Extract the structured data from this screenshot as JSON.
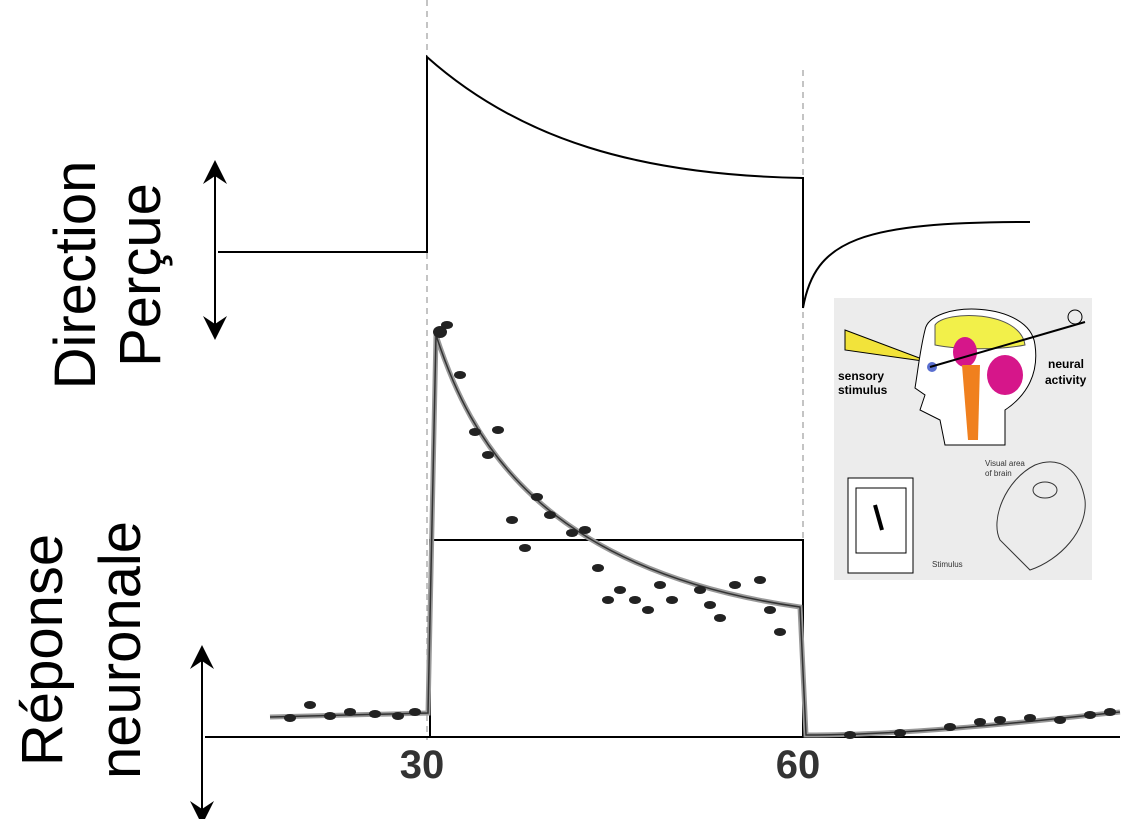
{
  "labels": {
    "perceived": [
      "Direction",
      "Perçue"
    ],
    "neural": [
      "Réponse",
      "neuronale"
    ]
  },
  "axis": {
    "ticks": [
      "30",
      "60"
    ]
  },
  "inset": {
    "sensory": [
      "sensory",
      "stimulus"
    ],
    "neural": [
      "neural",
      "activity"
    ],
    "visual": [
      "Visual area",
      "of brain"
    ],
    "stimulus": "Stimulus"
  }
}
